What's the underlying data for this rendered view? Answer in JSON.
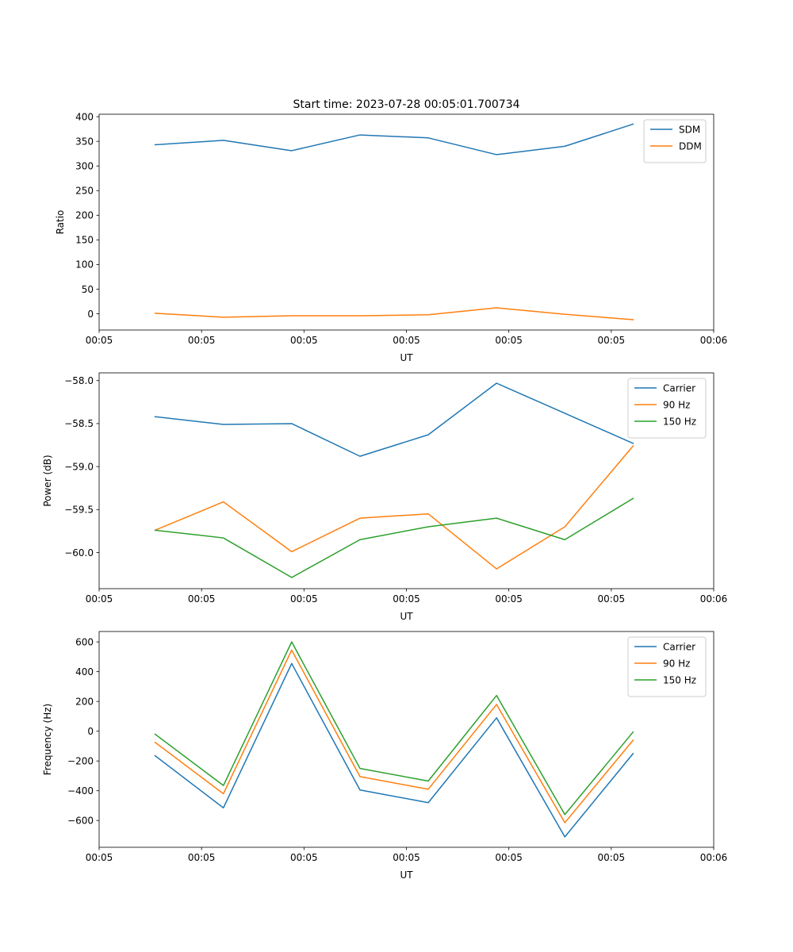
{
  "title": "Start time: 2023-07-28 00:05:01.700734",
  "colors": {
    "blue": "#1f77b4",
    "orange": "#ff7f0e",
    "green": "#2ca02c"
  },
  "chart_data": [
    {
      "type": "line",
      "title": "Start time: 2023-07-28 00:05:01.700734",
      "xlabel": "UT",
      "ylabel": "Ratio",
      "x": [
        1,
        2,
        3,
        4,
        5,
        6,
        7,
        8
      ],
      "xlim": [
        0.18,
        9.18
      ],
      "xticks": [
        0.18,
        1.68,
        3.18,
        4.68,
        6.18,
        7.68,
        9.18
      ],
      "xtick_labels": [
        "00:05",
        "00:05",
        "00:05",
        "00:05",
        "00:05",
        "00:05",
        "00:06"
      ],
      "ylim": [
        -33,
        405
      ],
      "yticks": [
        0,
        50,
        100,
        150,
        200,
        250,
        300,
        350,
        400
      ],
      "ytick_labels": [
        "0",
        "50",
        "100",
        "150",
        "200",
        "250",
        "300",
        "350",
        "400"
      ],
      "legend": "top-right",
      "series": [
        {
          "name": "SDM",
          "color": "#1f77b4",
          "values": [
            343,
            352,
            331,
            363,
            357,
            323,
            340,
            385
          ]
        },
        {
          "name": "DDM",
          "color": "#ff7f0e",
          "values": [
            1,
            -7,
            -4,
            -4,
            -2,
            12,
            -1,
            -12
          ]
        }
      ]
    },
    {
      "type": "line",
      "xlabel": "UT",
      "ylabel": "Power (dB)",
      "x": [
        1,
        2,
        3,
        4,
        5,
        6,
        7,
        8
      ],
      "xlim": [
        0.18,
        9.18
      ],
      "xticks": [
        0.18,
        1.68,
        3.18,
        4.68,
        6.18,
        7.68,
        9.18
      ],
      "xtick_labels": [
        "00:05",
        "00:05",
        "00:05",
        "00:05",
        "00:05",
        "00:05",
        "00:06"
      ],
      "ylim": [
        -60.42,
        -57.91
      ],
      "yticks": [
        -60.0,
        -59.5,
        -59.0,
        -58.5,
        -58.0
      ],
      "ytick_labels": [
        "−60.0",
        "−59.5",
        "−59.0",
        "−58.5",
        "−58.0"
      ],
      "legend": "top-right",
      "series": [
        {
          "name": "Carrier",
          "color": "#1f77b4",
          "values": [
            -58.42,
            -58.51,
            -58.5,
            -58.88,
            -58.63,
            -58.03,
            -58.38,
            -58.73
          ]
        },
        {
          "name": "90 Hz",
          "color": "#ff7f0e",
          "values": [
            -59.74,
            -59.41,
            -59.99,
            -59.6,
            -59.55,
            -60.19,
            -59.7,
            -58.76
          ]
        },
        {
          "name": "150 Hz",
          "color": "#2ca02c",
          "values": [
            -59.74,
            -59.83,
            -60.29,
            -59.85,
            -59.7,
            -59.6,
            -59.85,
            -59.37
          ]
        }
      ]
    },
    {
      "type": "line",
      "xlabel": "UT",
      "ylabel": "Frequency (Hz)",
      "x": [
        1,
        2,
        3,
        4,
        5,
        6,
        7,
        8
      ],
      "xlim": [
        0.18,
        9.18
      ],
      "xticks": [
        0.18,
        1.68,
        3.18,
        4.68,
        6.18,
        7.68,
        9.18
      ],
      "xtick_labels": [
        "00:05",
        "00:05",
        "00:05",
        "00:05",
        "00:05",
        "00:05",
        "00:06"
      ],
      "ylim": [
        -780,
        670
      ],
      "yticks": [
        -600,
        -400,
        -200,
        0,
        200,
        400,
        600
      ],
      "ytick_labels": [
        "−600",
        "−400",
        "−200",
        "0",
        "200",
        "400",
        "600"
      ],
      "legend": "top-right",
      "series": [
        {
          "name": "Carrier",
          "color": "#1f77b4",
          "values": [
            -165,
            -515,
            455,
            -395,
            -480,
            90,
            -710,
            -150
          ]
        },
        {
          "name": "90 Hz",
          "color": "#ff7f0e",
          "values": [
            -75,
            -420,
            545,
            -305,
            -390,
            180,
            -615,
            -60
          ]
        },
        {
          "name": "150 Hz",
          "color": "#2ca02c",
          "values": [
            -20,
            -365,
            600,
            -250,
            -335,
            240,
            -560,
            -5
          ]
        }
      ]
    }
  ]
}
